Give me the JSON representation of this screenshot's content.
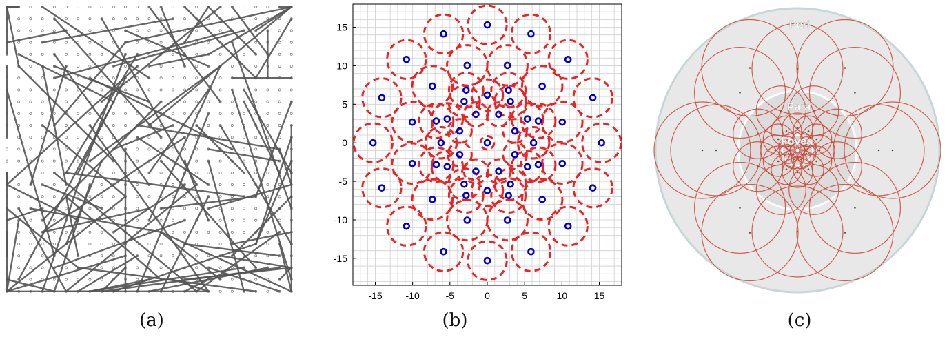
{
  "captions": {
    "a": "(a)",
    "b": "(b)",
    "c": "(c)"
  },
  "panel_a": {
    "grid_cols": 25,
    "grid_rows": 25,
    "line_count": 120
  },
  "chart_data": {
    "type": "scatter",
    "x_ticks": [
      -15,
      -10,
      -5,
      0,
      5,
      10,
      15
    ],
    "y_ticks": [
      15,
      10,
      5,
      0,
      -5,
      -10,
      -15
    ],
    "xlim": [
      -18,
      18
    ],
    "ylim": [
      -18.5,
      18
    ],
    "grid": true,
    "center_color": "#0000cc",
    "region_color": "#ee2222",
    "rings": [
      {
        "r": 0,
        "n": 1,
        "offset_deg": 0,
        "radius": 0.9
      },
      {
        "r": 4.0,
        "n": 8,
        "offset_deg": 22.5,
        "radius": 1.6
      },
      {
        "r": 6.2,
        "n": 12,
        "offset_deg": 0,
        "radius": 2.1
      },
      {
        "r": 7.4,
        "n": 8,
        "offset_deg": 22.5,
        "radius": 2.3
      },
      {
        "r": 10.4,
        "n": 12,
        "offset_deg": 15,
        "radius": 2.7
      },
      {
        "r": 15.3,
        "n": 16,
        "offset_deg": 0,
        "radius": 2.6
      }
    ]
  },
  "panel_c": {
    "labels": {
      "peri": "Peri",
      "para": "Para",
      "fovea": "Fovea"
    },
    "colors": {
      "circle": "#cc4433",
      "background": "#e8e8e8",
      "ring": "#ffffff"
    }
  }
}
